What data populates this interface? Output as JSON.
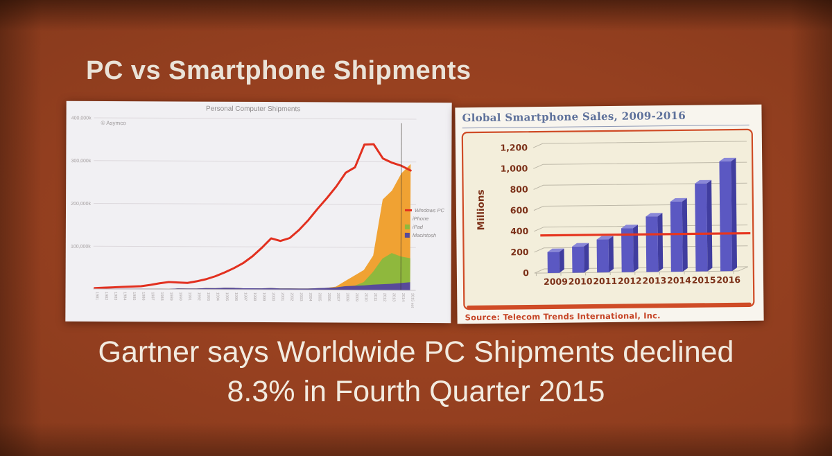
{
  "slide": {
    "title": "PC vs Smartphone Shipments",
    "caption": {
      "line1": "Gartner says Worldwide PC Shipments declined",
      "line2": "8.3% in Fourth Quarter 2015"
    },
    "background_colors": {
      "center": "#a3471f",
      "edge": "#4e1f0b"
    }
  },
  "chart_data": [
    {
      "id": "personal-computer-shipments",
      "type": "area",
      "subtype": "stacked areas with overlaid line",
      "title": "Personal Computer Shipments",
      "watermark": "© Asymco",
      "unit_note": "values in millions of units; axis labeled in thousands (k)",
      "ylim_millions": [
        0,
        430
      ],
      "yticks": [
        {
          "value": 400,
          "label": "400,000k"
        },
        {
          "value": 300,
          "label": "300,000k"
        },
        {
          "value": 200,
          "label": "200,000k"
        },
        {
          "value": 100,
          "label": "100,000k"
        }
      ],
      "x_tick_labels": [
        "1981",
        "1982",
        "1983",
        "1984",
        "1985",
        "1986",
        "1987",
        "1988",
        "1989",
        "1990",
        "1991",
        "1992",
        "1993",
        "1994",
        "1995",
        "1996",
        "1997",
        "1998",
        "1999",
        "2000",
        "2001",
        "2002",
        "2003",
        "2004",
        "2005",
        "2006",
        "2007",
        "2008",
        "2009",
        "2010",
        "2011",
        "2012",
        "2013",
        "2014",
        "2015 est"
      ],
      "estimate_divider_year": "2014",
      "series": [
        {
          "name": "Windows PC",
          "type": "line",
          "color": "#e2301f",
          "values": [
            2,
            3,
            4,
            5,
            6,
            7,
            10,
            14,
            17,
            16,
            15,
            19,
            24,
            31,
            40,
            50,
            62,
            78,
            98,
            120,
            114,
            121,
            140,
            163,
            190,
            215,
            242,
            274,
            287,
            340,
            341,
            308,
            298,
            291,
            280
          ]
        },
        {
          "name": "iPhone",
          "type": "area",
          "color": "#f0a233",
          "values": [
            0,
            0,
            0,
            0,
            0,
            0,
            0,
            0,
            0,
            0,
            0,
            0,
            0,
            0,
            0,
            0,
            0,
            0,
            0,
            0,
            0,
            0,
            0,
            0,
            0,
            0,
            2,
            12,
            24,
            28,
            38,
            138,
            146,
            194,
            220
          ]
        },
        {
          "name": "iPad",
          "type": "area",
          "color": "#8fb83d",
          "values": [
            0,
            0,
            0,
            0,
            0,
            0,
            0,
            0,
            0,
            0,
            0,
            0,
            0,
            0,
            0,
            0,
            0,
            0,
            0,
            0,
            0,
            0,
            0,
            0,
            0,
            0,
            0,
            0,
            0,
            8,
            30,
            60,
            72,
            62,
            56
          ]
        },
        {
          "name": "Macintosh",
          "type": "area",
          "color": "#584a9a",
          "values": [
            1,
            1,
            1,
            1,
            1,
            1,
            1,
            1,
            1,
            2,
            2,
            2,
            3,
            3,
            4,
            4,
            3,
            3,
            3,
            4,
            3,
            3,
            3,
            3,
            4,
            5,
            6,
            9,
            10,
            11,
            13,
            14,
            15,
            17,
            19
          ]
        }
      ],
      "legend": [
        {
          "label": "Windows PC",
          "color": "#e2301f",
          "marker": "line"
        },
        {
          "label": "iPhone",
          "color": "#f0a233",
          "marker": "square"
        },
        {
          "label": "iPad",
          "color": "#8fb83d",
          "marker": "square"
        },
        {
          "label": "Macintosh",
          "color": "#584a9a",
          "marker": "square"
        }
      ],
      "legend_position": "right"
    },
    {
      "id": "global-smartphone-sales",
      "type": "bar",
      "subtype": "3d-bar",
      "title": "Global Smartphone Sales, 2009-2016",
      "ylabel": "Millions",
      "categories": [
        "2009",
        "2010",
        "2011",
        "2012",
        "2013",
        "2014",
        "2015",
        "2016"
      ],
      "values": [
        200,
        250,
        315,
        420,
        530,
        670,
        840,
        1050
      ],
      "ylim": [
        0,
        1200
      ],
      "yticks": [
        {
          "value": 0,
          "label": "0"
        },
        {
          "value": 200,
          "label": "200"
        },
        {
          "value": 400,
          "label": "400"
        },
        {
          "value": 600,
          "label": "600"
        },
        {
          "value": 800,
          "label": "800"
        },
        {
          "value": 1000,
          "label": "1,000"
        },
        {
          "value": 1200,
          "label": "1,200"
        }
      ],
      "grid": true,
      "reference_line": {
        "value": 360,
        "color": "#e63620",
        "note": "horizontal red line across bars"
      },
      "source": "Source: Telecom Trends International, Inc.",
      "colors": {
        "bar_front": "#5b58c2",
        "bar_side": "#403d9f",
        "bar_top": "#8987d8",
        "frame_border": "#cf4b26",
        "panel_fill": "#f3eedb",
        "grid_line": "#bdb8a8",
        "label": "#7b3018",
        "title": "#5e719b",
        "source": "#c64527"
      }
    }
  ]
}
